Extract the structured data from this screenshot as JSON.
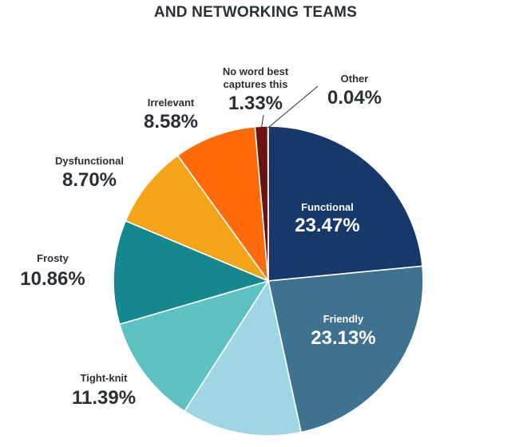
{
  "chart_data": {
    "type": "pie",
    "title": "AND NETWORKING TEAMS",
    "slices": [
      {
        "label": "Functional",
        "value": 23.47,
        "display": "23.47%",
        "color": "#16386b"
      },
      {
        "label": "Friendly",
        "value": 23.13,
        "display": "23.13%",
        "color": "#3f7191"
      },
      {
        "label": "",
        "value": 12.5,
        "display": "",
        "color": "#9fd6e3"
      },
      {
        "label": "Tight-knit",
        "value": 11.39,
        "display": "11.39%",
        "color": "#5ec1c2"
      },
      {
        "label": "Frosty",
        "value": 10.86,
        "display": "10.86%",
        "color": "#14888e"
      },
      {
        "label": "Dysfunctional",
        "value": 8.7,
        "display": "8.70%",
        "color": "#f5a317"
      },
      {
        "label": "Irrelevant",
        "value": 8.58,
        "display": "8.58%",
        "color": "#ff6a0a"
      },
      {
        "label": "No word best captures this",
        "value": 1.33,
        "display": "1.33%",
        "color": "#6b1310"
      },
      {
        "label": "Other",
        "value": 0.04,
        "display": "0.04%",
        "color": "#1c1c1c"
      }
    ]
  }
}
